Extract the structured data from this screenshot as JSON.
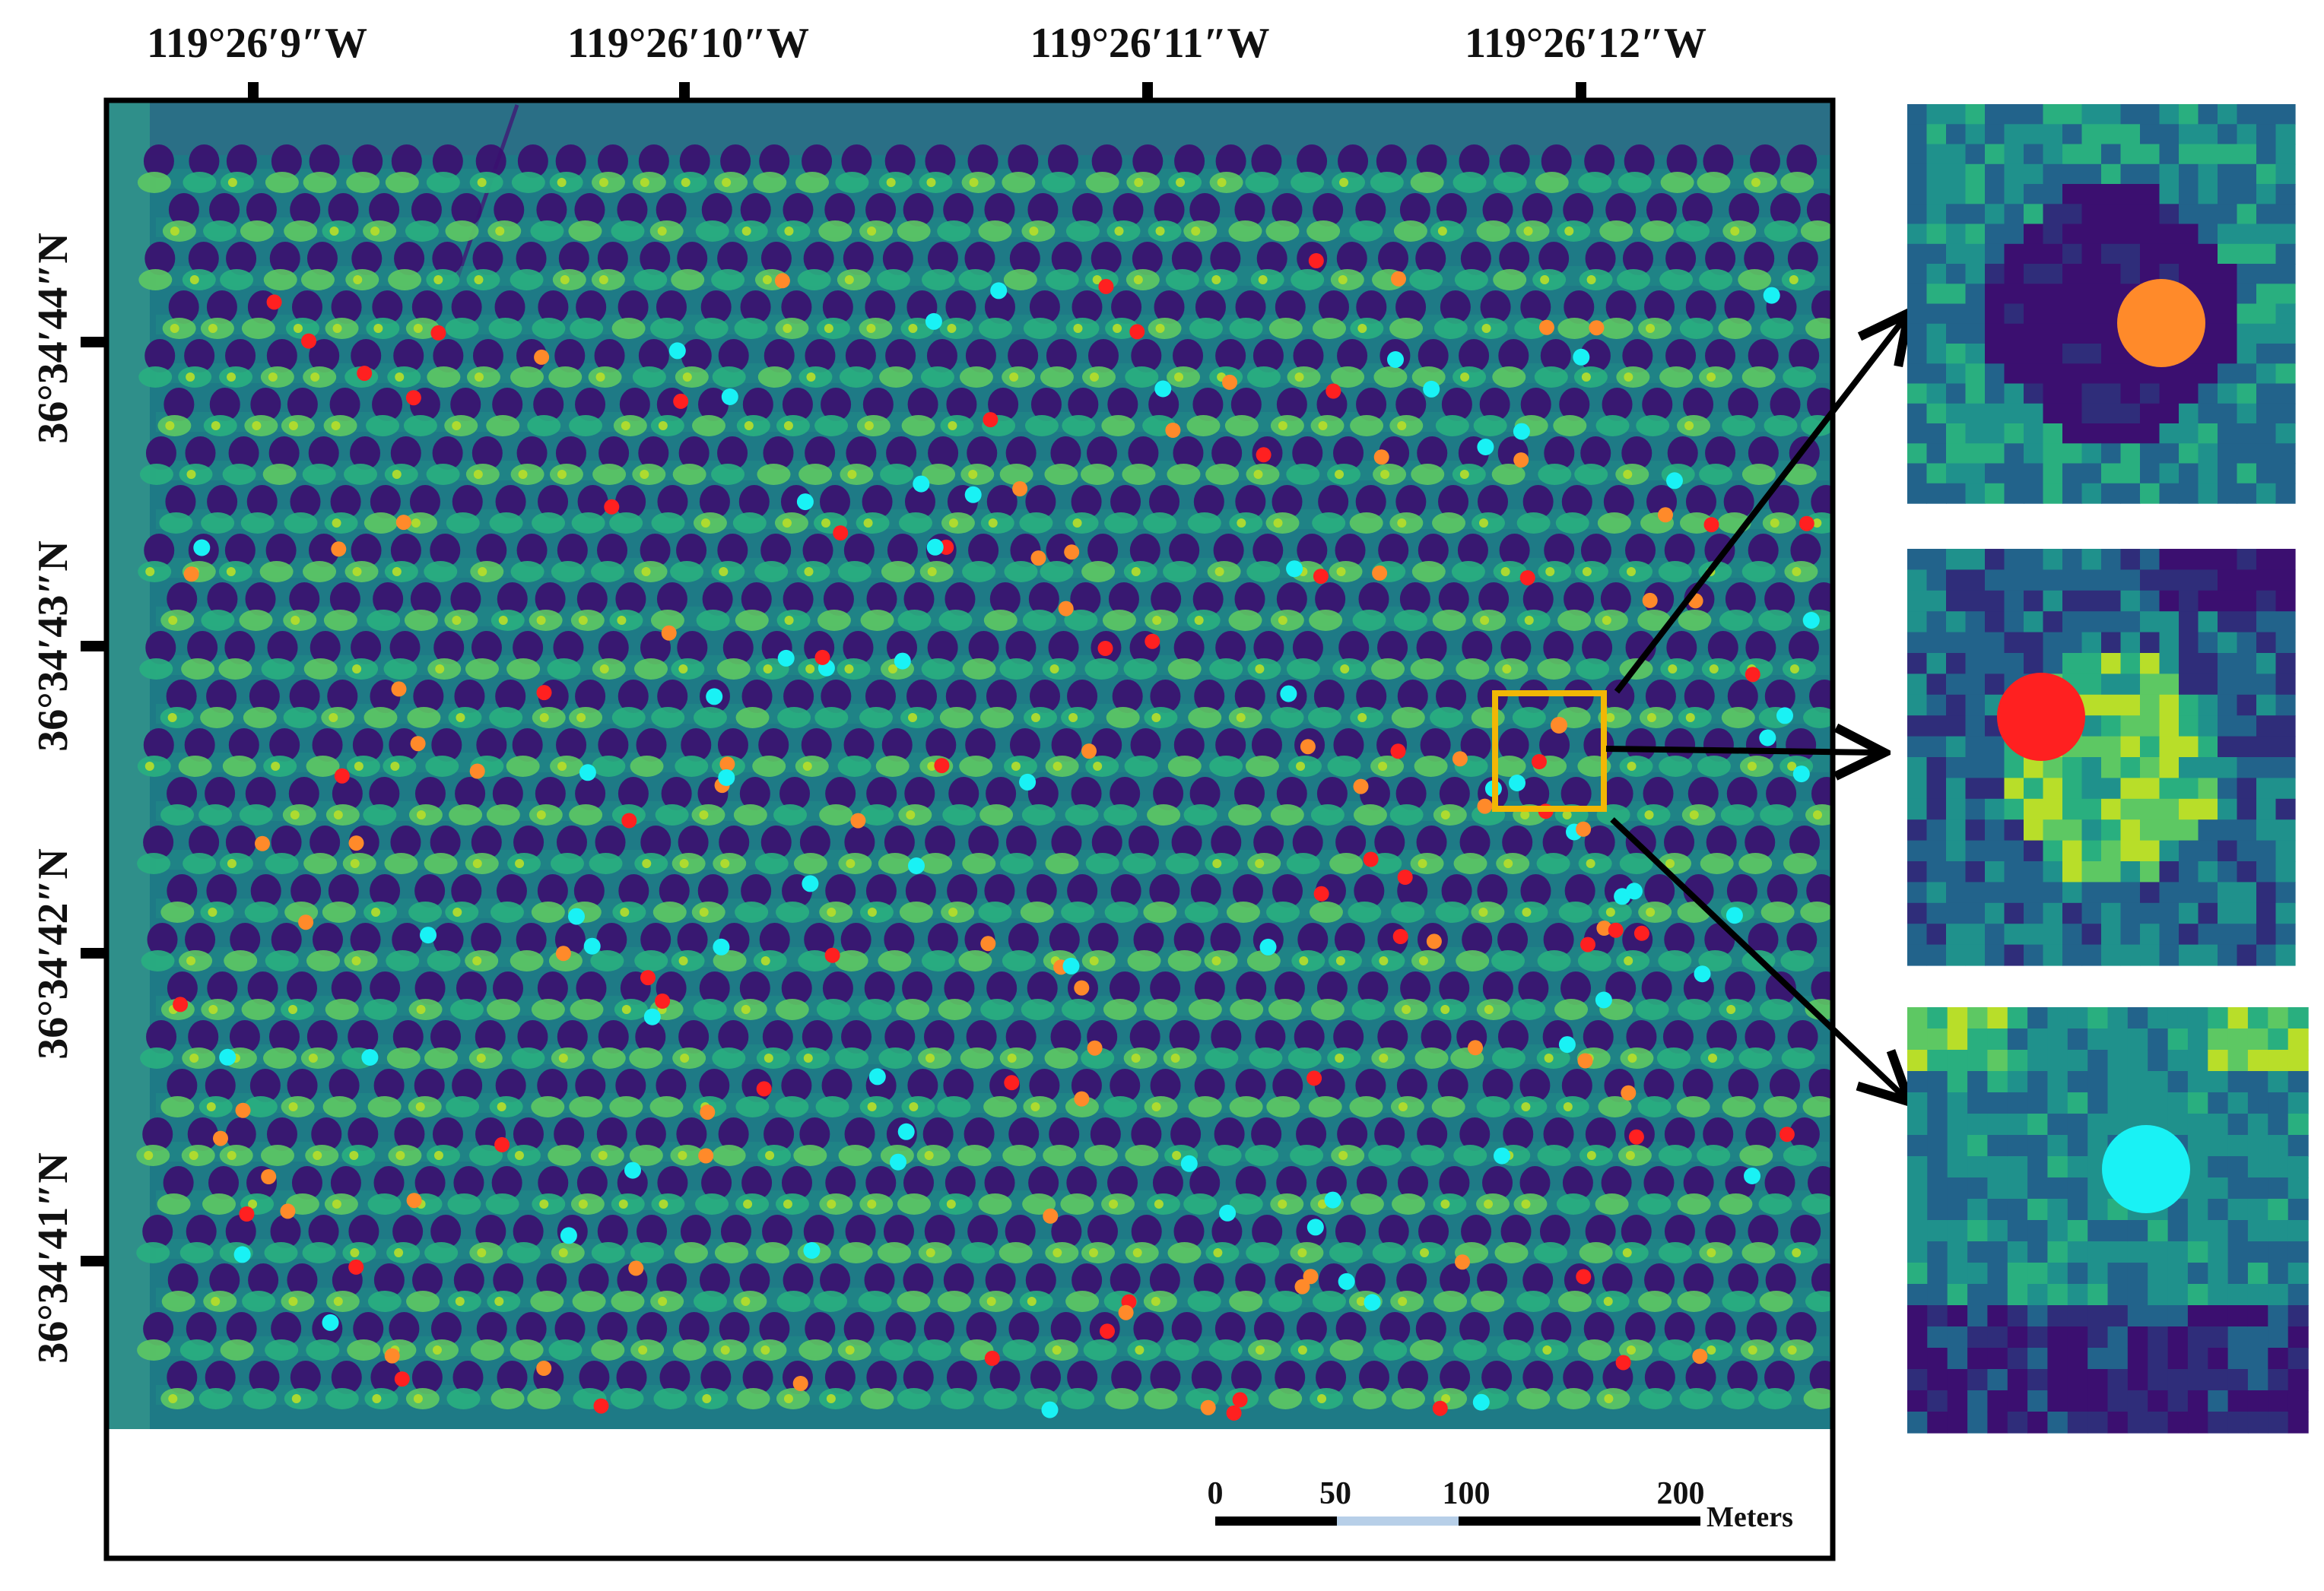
{
  "map": {
    "lon_labels": [
      "119°26′9″W",
      "119°26′10″W",
      "119°26′11″W",
      "119°26′12″W"
    ],
    "lat_labels": [
      "36°34′44″N",
      "36°34′43″N",
      "36°34′42″N",
      "36°34′41″N"
    ],
    "scale_bar": {
      "ticks": [
        "0",
        "50",
        "100",
        "200"
      ],
      "unit": "Meters"
    },
    "colors": {
      "palette": [
        "#3b0f70",
        "#2f2d7a",
        "#22638b",
        "#1f918c",
        "#29af7f",
        "#5dc863",
        "#b8de29",
        "#fde725"
      ],
      "marker_orange": "#ff8a2a",
      "marker_red": "#ff2020",
      "marker_cyan": "#19f2f5",
      "highlight_box": "#f2b705",
      "background": "#1e7a86"
    }
  },
  "insets": [
    {
      "marker_color": "#ff8a2a",
      "theme": "dark"
    },
    {
      "marker_color": "#ff2020",
      "theme": "bright"
    },
    {
      "marker_color": "#19f2f5",
      "theme": "mid"
    }
  ]
}
